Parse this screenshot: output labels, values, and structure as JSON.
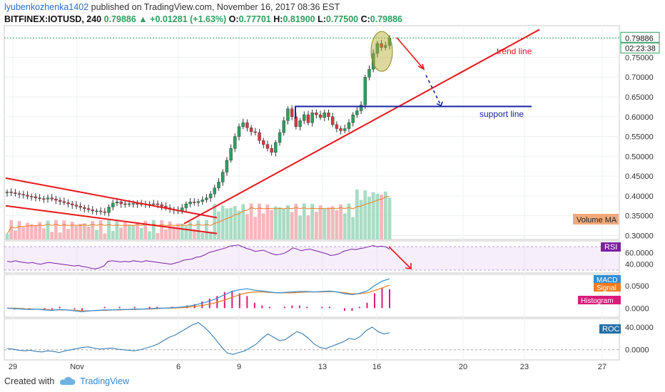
{
  "header": {
    "author": "lyubenkozhenka1402",
    "published_text": "published on TradingView.com, November 16, 2017 08:36 EST",
    "symbol": "BITFINEX:IOTUSD, 240",
    "last": "0.79886",
    "change_arrow": "▲",
    "change": "+0.01281 (+1.63%)",
    "o_label": "O:",
    "o": "0.77701",
    "h_label": "H:",
    "h": "0.81900",
    "l_label": "L:",
    "l": "0.77500",
    "c_label": "C:",
    "c": "0.79886"
  },
  "footer": {
    "created_with": "Created with",
    "brand": "TradingView",
    "logo_icon": "tradingview-cloud-icon"
  },
  "colors": {
    "up": "#2e9e5e",
    "down": "#d8393f",
    "trend": "#e8161b",
    "support": "#1a22a8",
    "rsi": "#7b1fa2",
    "macd": "#2f8fd6",
    "signal": "#f07c1e",
    "histogram": "#d81b7a",
    "roc": "#246ea8",
    "volume_up": "#a9dcc4",
    "volume_down": "#f3b7bb",
    "volume_ma": "#f07c1e"
  },
  "chart_data": [
    {
      "type": "candlestick",
      "title": "BITFINEX:IOTUSD, 240",
      "x_ticks": [
        "29",
        "Nov",
        "6",
        "9",
        "13",
        "16",
        "20",
        "23",
        "27"
      ],
      "y_ticks": [
        "0.75000",
        "0.70000",
        "0.65000",
        "0.60000",
        "0.55000",
        "0.50000",
        "0.45000",
        "0.40000",
        "0.35000",
        "0.30000"
      ],
      "ylim": [
        0.29,
        0.83
      ],
      "current_price_label": "0.79886",
      "countdown_label": "02:23:38",
      "annotations": {
        "trend_line": "trend line",
        "support_line": "support line",
        "volume_ma": "Volume MA"
      },
      "support_level": 0.626,
      "closes": [
        0.41,
        0.408,
        0.406,
        0.404,
        0.402,
        0.399,
        0.398,
        0.395,
        0.393,
        0.392,
        0.395,
        0.392,
        0.389,
        0.386,
        0.383,
        0.38,
        0.377,
        0.374,
        0.371,
        0.368,
        0.365,
        0.362,
        0.362,
        0.36,
        0.358,
        0.372,
        0.382,
        0.385,
        0.38,
        0.379,
        0.38,
        0.381,
        0.379,
        0.38,
        0.379,
        0.379,
        0.38,
        0.378,
        0.374,
        0.37,
        0.366,
        0.364,
        0.362,
        0.37,
        0.38,
        0.385,
        0.383,
        0.386,
        0.39,
        0.395,
        0.405,
        0.42,
        0.435,
        0.46,
        0.49,
        0.52,
        0.55,
        0.575,
        0.585,
        0.572,
        0.562,
        0.56,
        0.54,
        0.53,
        0.52,
        0.51,
        0.535,
        0.56,
        0.59,
        0.62,
        0.6,
        0.575,
        0.59,
        0.605,
        0.585,
        0.61,
        0.605,
        0.598,
        0.61,
        0.6,
        0.58,
        0.57,
        0.565,
        0.57,
        0.585,
        0.605,
        0.615,
        0.63,
        0.7,
        0.72,
        0.76,
        0.785,
        0.775,
        0.78,
        0.799
      ]
    },
    {
      "type": "line",
      "name": "RSI",
      "y_ticks": [
        "60.0000",
        "40.0000"
      ],
      "ylim": [
        25,
        80
      ],
      "values": [
        45,
        44,
        46,
        44,
        43,
        42,
        43,
        41,
        40,
        42,
        43,
        42,
        41,
        40,
        39,
        38,
        37,
        38,
        36,
        35,
        33,
        32,
        34,
        37,
        45,
        46,
        45,
        44,
        45,
        44,
        46,
        45,
        44,
        46,
        45,
        44,
        43,
        42,
        41,
        40,
        42,
        44,
        47,
        48,
        49,
        52,
        53,
        56,
        60,
        62,
        64,
        66,
        68,
        71,
        72,
        73,
        70,
        67,
        65,
        62,
        63,
        64,
        61,
        58,
        56,
        57,
        59,
        63,
        68,
        66,
        63,
        65,
        66,
        64,
        62,
        60,
        58,
        55,
        56,
        58,
        62,
        64,
        66,
        65,
        67,
        68,
        70,
        72,
        70,
        71,
        70,
        66
      ]
    },
    {
      "type": "line",
      "name": "MACD",
      "y_ticks": [
        "0.0500",
        "0.0000"
      ],
      "ylim": [
        -0.02,
        0.075
      ],
      "series": [
        {
          "name": "MACD",
          "values": [
            0.0,
            -0.001,
            -0.002,
            -0.003,
            -0.002,
            -0.004,
            -0.005,
            -0.003,
            -0.004,
            -0.006,
            -0.008,
            -0.006,
            -0.005,
            -0.004,
            -0.004,
            -0.003,
            -0.003,
            -0.002,
            -0.002,
            -0.001,
            0.0,
            0.0,
            0.001,
            0.002,
            0.004,
            0.007,
            0.011,
            0.016,
            0.022,
            0.03,
            0.037,
            0.041,
            0.043,
            0.04,
            0.038,
            0.036,
            0.034,
            0.035,
            0.036,
            0.037,
            0.037,
            0.036,
            0.037,
            0.038,
            0.036,
            0.032,
            0.03,
            0.033,
            0.038,
            0.05,
            0.06,
            0.065
          ]
        },
        {
          "name": "Signal",
          "values": [
            0.0,
            0.0,
            -0.001,
            -0.002,
            -0.002,
            -0.003,
            -0.004,
            -0.004,
            -0.004,
            -0.005,
            -0.006,
            -0.006,
            -0.005,
            -0.005,
            -0.004,
            -0.004,
            -0.003,
            -0.003,
            -0.002,
            -0.002,
            -0.001,
            0.0,
            0.0,
            0.001,
            0.002,
            0.004,
            0.006,
            0.009,
            0.013,
            0.018,
            0.024,
            0.03,
            0.034,
            0.036,
            0.036,
            0.035,
            0.034,
            0.034,
            0.034,
            0.035,
            0.036,
            0.036,
            0.036,
            0.037,
            0.036,
            0.034,
            0.032,
            0.032,
            0.034,
            0.039,
            0.045,
            0.051
          ]
        }
      ]
    },
    {
      "type": "line",
      "name": "ROC",
      "y_ticks": [
        "40.0000",
        "0.0000"
      ],
      "ylim": [
        -18,
        55
      ],
      "values": [
        2,
        1,
        -1,
        -2,
        -1,
        -3,
        -4,
        -2,
        -3,
        -5,
        -2,
        0,
        2,
        4,
        5,
        3,
        1,
        2,
        3,
        1,
        0,
        -1,
        -2,
        0,
        3,
        6,
        10,
        16,
        22,
        26,
        32,
        38,
        44,
        48,
        40,
        30,
        18,
        5,
        -6,
        -8,
        -5,
        -2,
        4,
        10,
        20,
        28,
        22,
        16,
        18,
        25,
        32,
        28,
        20,
        10,
        4,
        2,
        6,
        10,
        14,
        20,
        18,
        24,
        34,
        40,
        32,
        28,
        30
      ]
    }
  ]
}
